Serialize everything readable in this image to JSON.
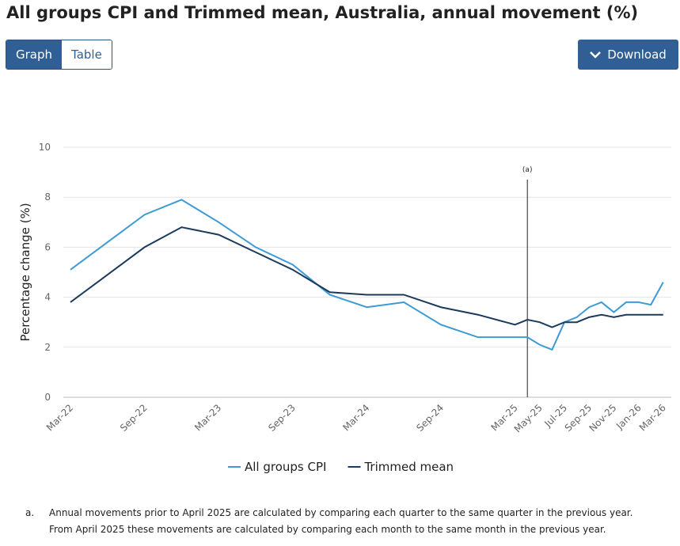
{
  "header": {
    "title": "All groups CPI and Trimmed mean, Australia, annual movement (%)",
    "tabs": [
      "Graph",
      "Table"
    ],
    "download": "Download"
  },
  "chart_data": {
    "type": "line",
    "y_label": "Percentage change (%)",
    "categories": [
      "Mar-22",
      null,
      "Sep-22",
      null,
      "Mar-23",
      null,
      "Sep-23",
      null,
      "Mar-24",
      null,
      "Sep-24",
      null,
      "Mar-25",
      null,
      "May-25",
      null,
      "Jul-25",
      null,
      "Sep-25",
      null,
      "Nov-25",
      null,
      "Jan-26",
      null,
      "Mar-26"
    ],
    "series": [
      {
        "name": "All groups CPI",
        "color": "#3d9bd4",
        "values": [
          5.1,
          6.2,
          7.3,
          7.9,
          7.0,
          6.0,
          5.3,
          4.1,
          3.6,
          3.8,
          2.9,
          2.4,
          2.4,
          2.4,
          2.1,
          1.9,
          3.0,
          3.2,
          3.6,
          3.8,
          3.4,
          3.8,
          3.8,
          3.7,
          4.6
        ]
      },
      {
        "name": "Trimmed mean",
        "color": "#1b3a5c",
        "values": [
          3.8,
          4.9,
          6.0,
          6.8,
          6.5,
          5.8,
          5.1,
          4.2,
          4.1,
          4.1,
          3.6,
          3.3,
          2.9,
          3.1,
          3.0,
          2.8,
          3.0,
          3.0,
          3.2,
          3.3,
          3.2,
          3.3,
          3.3,
          3.3,
          3.3
        ]
      }
    ],
    "ylim": [
      0,
      10
    ],
    "yticks": [
      0,
      2,
      4,
      6,
      8,
      10
    ],
    "grid": true,
    "annotation": "(a)"
  },
  "notes": [
    {
      "key": "a.",
      "lines": [
        "Annual movements prior to April 2025 are calculated by comparing each quarter to the same quarter in the previous year.",
        "From April 2025 these movements are calculated by comparing each month to the same month in the previous year."
      ]
    }
  ]
}
